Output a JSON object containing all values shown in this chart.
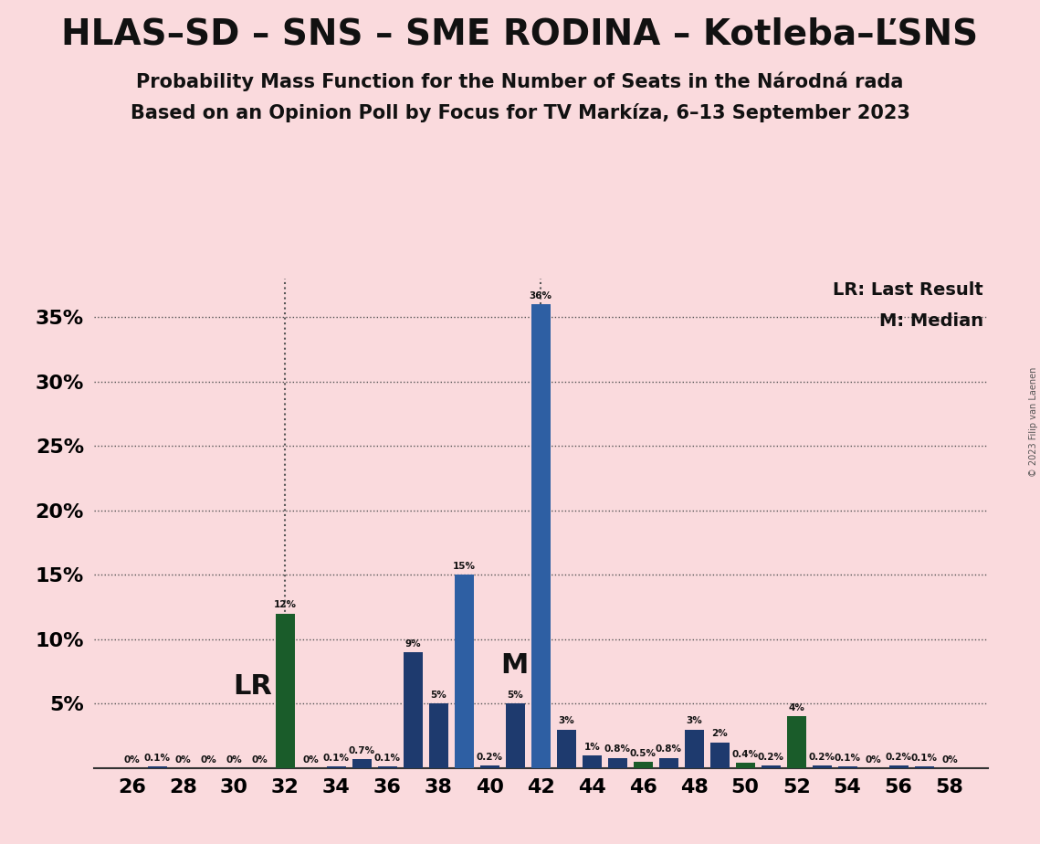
{
  "title": "HLAS–SD – SNS – SME RODINA – Kotleba–ĽSNS",
  "subtitle1": "Probability Mass Function for the Number of Seats in the Národná rada",
  "subtitle2": "Based on an Opinion Poll by Focus for TV Markíza, 6–13 September 2023",
  "copyright": "© 2023 Filip van Laenen",
  "background_color": "#fadadd",
  "seats": [
    26,
    27,
    28,
    29,
    30,
    31,
    32,
    33,
    34,
    35,
    36,
    37,
    38,
    39,
    40,
    41,
    42,
    43,
    44,
    45,
    46,
    47,
    48,
    49,
    50,
    51,
    52,
    53,
    54,
    55,
    56,
    57,
    58
  ],
  "values": [
    0.0,
    0.1,
    0.0,
    0.0,
    0.0,
    0.0,
    12.0,
    0.0,
    0.1,
    0.7,
    0.1,
    9.0,
    5.0,
    15.0,
    0.2,
    5.0,
    36.0,
    3.0,
    1.0,
    0.8,
    0.5,
    0.8,
    3.0,
    2.0,
    0.4,
    0.2,
    4.0,
    0.2,
    0.1,
    0.0,
    0.2,
    0.1,
    0.0
  ],
  "bar_colors": [
    "#1e3a6e",
    "#1e3a6e",
    "#1e3a6e",
    "#1e3a6e",
    "#1e3a6e",
    "#1e3a6e",
    "#1a5c2a",
    "#1e3a6e",
    "#1e3a6e",
    "#1e3a6e",
    "#1e3a6e",
    "#1e3a6e",
    "#1e3a6e",
    "#2e5fa3",
    "#1e3a6e",
    "#1e3a6e",
    "#2e5fa3",
    "#1e3a6e",
    "#1e3a6e",
    "#1e3a6e",
    "#1a5c2a",
    "#1e3a6e",
    "#1e3a6e",
    "#1e3a6e",
    "#1a5c2a",
    "#1e3a6e",
    "#1a5c2a",
    "#1e3a6e",
    "#1e3a6e",
    "#1e3a6e",
    "#1e3a6e",
    "#1e3a6e",
    "#1e3a6e"
  ],
  "LR_seat": 32,
  "median_seat": 42,
  "LR_label": "LR",
  "median_label": "M",
  "dotted_line_color": "#555555",
  "yticks": [
    5,
    10,
    15,
    20,
    25,
    30,
    35
  ],
  "ylim": [
    0,
    38
  ],
  "xtick_seats": [
    26,
    28,
    30,
    32,
    34,
    36,
    38,
    40,
    42,
    44,
    46,
    48,
    50,
    52,
    54,
    56,
    58
  ]
}
